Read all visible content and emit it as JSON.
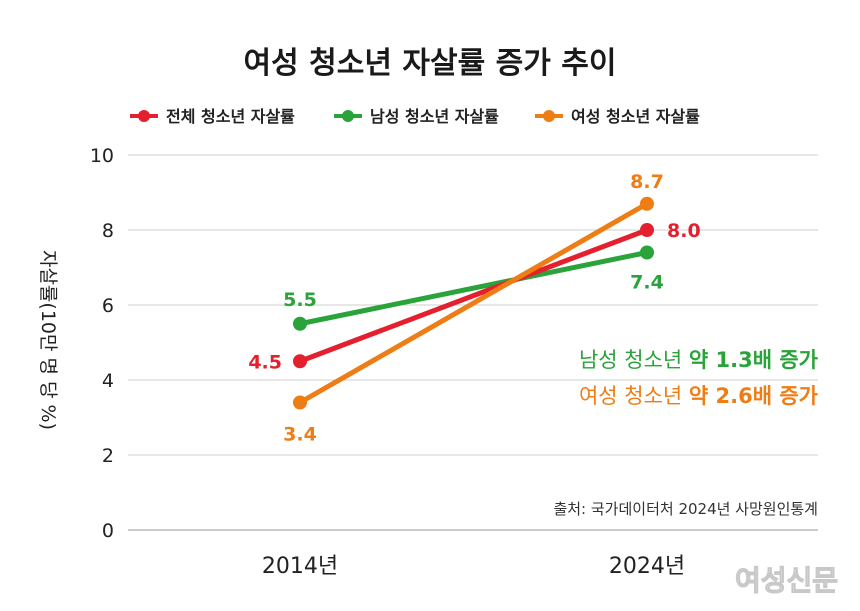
{
  "chart_data": {
    "type": "line",
    "title": "여성 청소년 자살률 증가 추이",
    "ylabel": "자살률(10만 명 당 %)",
    "xlabel": "",
    "categories": [
      "2014년",
      "2024년"
    ],
    "ylim": [
      0,
      10
    ],
    "yticks": [
      "0",
      "2",
      "4",
      "6",
      "8",
      "10"
    ],
    "grid": true,
    "legend_position": "top",
    "series": [
      {
        "name": "전체 청소년 자살률",
        "values": [
          4.5,
          8.0
        ],
        "labels": [
          "4.5",
          "8.0"
        ],
        "color": "#e5202e"
      },
      {
        "name": "남성 청소년 자살률",
        "values": [
          5.5,
          7.4
        ],
        "labels": [
          "5.5",
          "7.4"
        ],
        "color": "#2aa33a"
      },
      {
        "name": "여성 청소년 자살률",
        "values": [
          3.4,
          8.7
        ],
        "labels": [
          "3.4",
          "8.7"
        ],
        "color": "#ef7d16"
      }
    ],
    "annotations": [
      {
        "prefix": "남성 청소년 ",
        "bold": "약 1.3배 증가",
        "color": "#2aa33a"
      },
      {
        "prefix": "여성 청소년 ",
        "bold": "약 2.6배 증가",
        "color": "#ef7d16"
      }
    ],
    "source": "출처: 국가데이터처 2024년 사망원인통계"
  },
  "watermark": "여성신문"
}
